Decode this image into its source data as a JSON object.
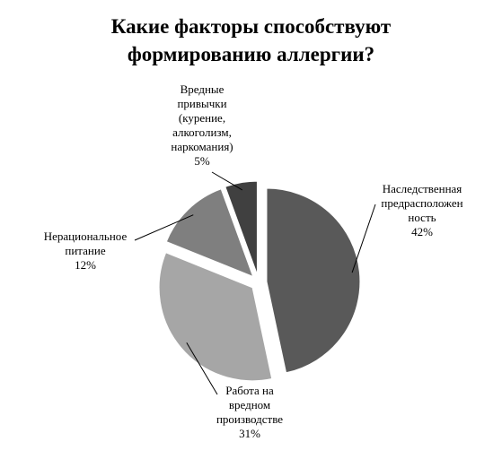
{
  "chart_data": {
    "type": "pie",
    "title": "Какие факторы способствуют\nформированию аллергии?",
    "categories": [
      "Наследственная\nпредрасположен\nность",
      "Работа на\nвредном\nпроизводстве",
      "Нерациональное\nпитание",
      "Вредные\nпривычки\n(курение,\nалкоголизм,\nнаркомания)"
    ],
    "values": [
      42,
      31,
      12,
      5
    ],
    "value_labels": [
      "42%",
      "31%",
      "12%",
      "5%"
    ],
    "colors": [
      "#595959",
      "#a6a6a6",
      "#7f7f7f",
      "#404040"
    ]
  }
}
